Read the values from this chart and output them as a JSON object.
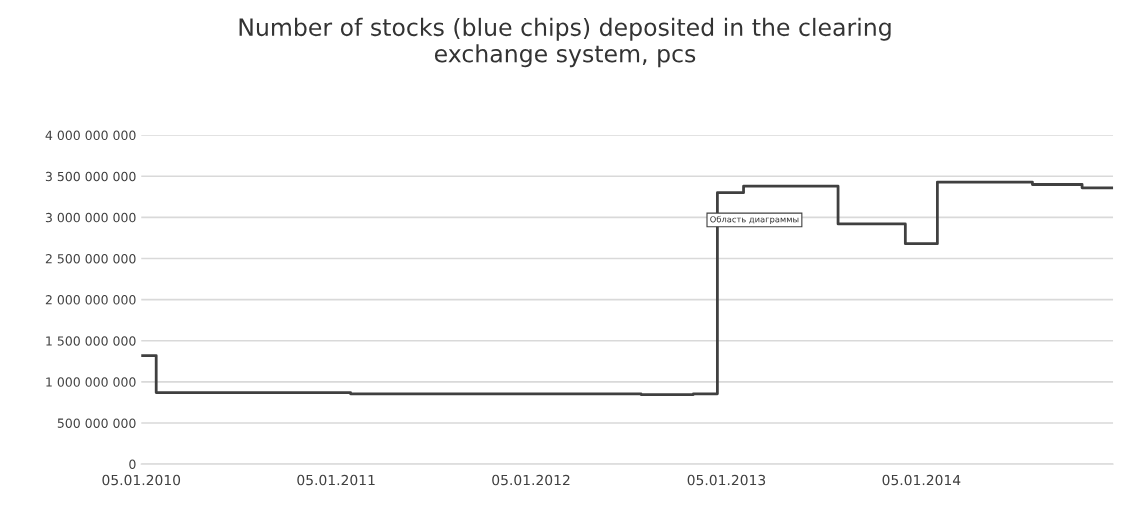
{
  "chart_data": {
    "type": "step",
    "title": "Number of stocks (blue chips) deposited in the clearing\nexchange system, pcs",
    "x": [
      "2010-01-05",
      "2010-02-02",
      "2011-02-01",
      "2012-07-29",
      "2012-11-04",
      "2012-12-19",
      "2013-02-06",
      "2013-08-02",
      "2013-12-06",
      "2014-02-04",
      "2014-08-01",
      "2014-11-02",
      "2014-12-30"
    ],
    "series": [
      {
        "color": "#404040",
        "values": [
          1320000000,
          870000000,
          855000000,
          845000000,
          855000000,
          3300000000,
          3380000000,
          2920000000,
          2680000000,
          3430000000,
          3400000000,
          3360000000,
          3360000000
        ]
      }
    ],
    "xlim": [
      "2010-01-05",
      "2014-12-30"
    ],
    "xticks": [
      {
        "value": "2010-01-05",
        "label": "05.01.2010"
      },
      {
        "value": "2011-01-05",
        "label": "05.01.2011"
      },
      {
        "value": "2012-01-05",
        "label": "05.01.2012"
      },
      {
        "value": "2013-01-05",
        "label": "05.01.2013"
      },
      {
        "value": "2014-01-05",
        "label": "05.01.2014"
      }
    ],
    "ylim": [
      0,
      4000000000
    ],
    "yticks": [
      0,
      {
        "value": 500000000,
        "label": "500 000 000"
      },
      {
        "value": 1000000000,
        "label": "1 000 000 000"
      },
      {
        "value": 1500000000,
        "label": "1 500 000 000"
      },
      {
        "value": 2000000000,
        "label": "2 000 000 000"
      },
      {
        "value": 2500000000,
        "label": "2 500 000 000"
      },
      {
        "value": 3000000000,
        "label": "3 000 000 000"
      },
      {
        "value": 3500000000,
        "label": "3 500 000 000"
      },
      {
        "value": 4000000000,
        "label": "4 000 000 000"
      }
    ],
    "grid": "y",
    "annotations": [
      "Область диаграммы"
    ]
  }
}
